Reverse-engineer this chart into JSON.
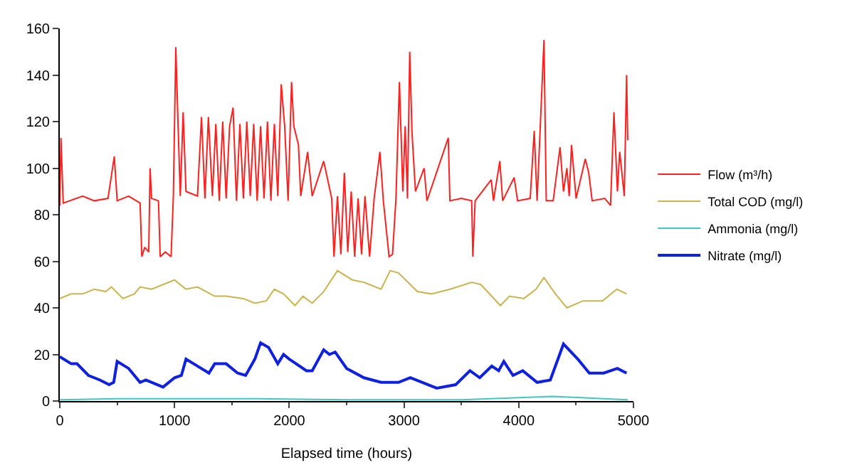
{
  "chart_data": {
    "type": "line",
    "xlabel": "Elapsed time (hours)",
    "xlim": [
      0,
      5000
    ],
    "xticks": [
      0,
      1000,
      2000,
      3000,
      4000,
      5000
    ],
    "ylim": [
      0,
      160
    ],
    "yticks": [
      0,
      20,
      40,
      60,
      80,
      100,
      120,
      140,
      160
    ],
    "grid": false,
    "legend": "right",
    "marker": "none",
    "line_style": "solid",
    "series": [
      {
        "name": "Flow (m³/h)",
        "color": "#ff2020",
        "x": [
          0,
          10,
          30,
          200,
          300,
          420,
          475,
          500,
          600,
          700,
          715,
          740,
          775,
          787,
          800,
          860,
          875,
          920,
          970,
          990,
          1011,
          1030,
          1050,
          1075,
          1100,
          1200,
          1235,
          1265,
          1295,
          1330,
          1360,
          1390,
          1420,
          1450,
          1480,
          1510,
          1540,
          1570,
          1600,
          1630,
          1660,
          1690,
          1720,
          1750,
          1780,
          1810,
          1840,
          1870,
          1900,
          1930,
          1960,
          1990,
          2020,
          2040,
          2080,
          2100,
          2160,
          2200,
          2300,
          2370,
          2390,
          2420,
          2450,
          2480,
          2510,
          2540,
          2570,
          2600,
          2630,
          2660,
          2700,
          2740,
          2790,
          2820,
          2870,
          2900,
          2930,
          2960,
          2990,
          3010,
          3030,
          3050,
          3070,
          3100,
          3175,
          3200,
          3386,
          3400,
          3500,
          3590,
          3600,
          3620,
          3760,
          3780,
          3835,
          3860,
          3960,
          3990,
          4100,
          4135,
          4160,
          4220,
          4240,
          4300,
          4360,
          4390,
          4420,
          4440,
          4460,
          4500,
          4580,
          4610,
          4640,
          4750,
          4800,
          4830,
          4860,
          4880,
          4920,
          4940,
          4950
        ],
        "values": [
          84,
          113,
          85,
          88,
          86,
          87,
          105,
          86,
          88,
          85,
          62,
          66,
          64,
          100,
          87,
          86,
          62,
          64,
          62,
          88,
          152,
          120,
          88,
          124,
          90,
          88,
          122,
          87,
          122,
          88,
          119,
          86,
          120,
          87,
          118,
          126,
          86,
          119,
          87,
          120,
          88,
          119,
          86,
          118,
          87,
          120,
          86,
          119,
          88,
          136,
          118,
          86,
          137,
          118,
          110,
          88,
          107,
          88,
          103,
          87,
          62,
          88,
          63,
          98,
          64,
          90,
          62,
          87,
          63,
          88,
          62,
          87,
          107,
          86,
          62,
          63,
          87,
          137,
          90,
          118,
          87,
          150,
          115,
          90,
          100,
          86,
          113,
          86,
          87,
          86,
          62,
          86,
          95,
          86,
          103,
          86,
          96,
          86,
          87,
          116,
          86,
          155,
          86,
          86,
          109,
          90,
          100,
          88,
          110,
          87,
          104,
          98,
          86,
          87,
          84,
          124,
          90,
          107,
          88,
          140,
          112
        ]
      },
      {
        "name": "Total COD (mg/l)",
        "color": "#c8b450",
        "x": [
          0,
          100,
          200,
          300,
          400,
          450,
          550,
          650,
          700,
          800,
          950,
          1000,
          1100,
          1200,
          1350,
          1450,
          1600,
          1700,
          1800,
          1870,
          1950,
          2050,
          2120,
          2200,
          2300,
          2420,
          2550,
          2650,
          2800,
          2880,
          2952,
          3117,
          3237,
          3403,
          3590,
          3670,
          3840,
          3920,
          4045,
          4150,
          4220,
          4320,
          4420,
          4560,
          4730,
          4855,
          4940
        ],
        "values": [
          44,
          46,
          46,
          48,
          47,
          49,
          44,
          46,
          49,
          48,
          51,
          52,
          48,
          49,
          45,
          45,
          44,
          42,
          43,
          48,
          46,
          41,
          45,
          42,
          47,
          56,
          52,
          51,
          48,
          56,
          55,
          47,
          46,
          48,
          51,
          50,
          41,
          45,
          44,
          48,
          53,
          46,
          40,
          43,
          43,
          48,
          46
        ]
      },
      {
        "name": "Ammonia (mg/l)",
        "color": "#40c8c0",
        "x": [
          0,
          500,
          1000,
          1700,
          2500,
          3500,
          4300,
          4950
        ],
        "values": [
          0.5,
          1,
          1,
          1,
          0.5,
          0.5,
          2,
          0.5
        ]
      },
      {
        "name": "Nitrate (mg/l)",
        "color": "#1020e0",
        "x": [
          0,
          100,
          150,
          250,
          350,
          430,
          470,
          500,
          600,
          700,
          750,
          900,
          1000,
          1060,
          1100,
          1200,
          1300,
          1350,
          1450,
          1550,
          1620,
          1700,
          1750,
          1820,
          1900,
          1950,
          2000,
          2150,
          2200,
          2300,
          2350,
          2400,
          2500,
          2650,
          2800,
          2952,
          3055,
          3285,
          3450,
          3575,
          3660,
          3765,
          3825,
          3870,
          3950,
          4035,
          4160,
          4275,
          4390,
          4515,
          4615,
          4740,
          4860,
          4940
        ],
        "values": [
          19,
          16,
          16,
          11,
          9,
          7,
          8,
          17,
          14,
          8,
          9,
          6,
          10,
          11,
          18,
          15,
          12,
          16,
          16,
          12,
          11,
          18,
          25,
          23,
          16,
          20,
          18,
          13,
          13,
          22,
          20,
          21,
          14,
          10,
          8,
          8,
          10,
          5.5,
          7,
          13,
          10,
          15,
          13,
          17,
          11,
          13,
          8,
          9,
          24.5,
          18,
          12,
          12,
          14,
          12
        ]
      }
    ]
  }
}
